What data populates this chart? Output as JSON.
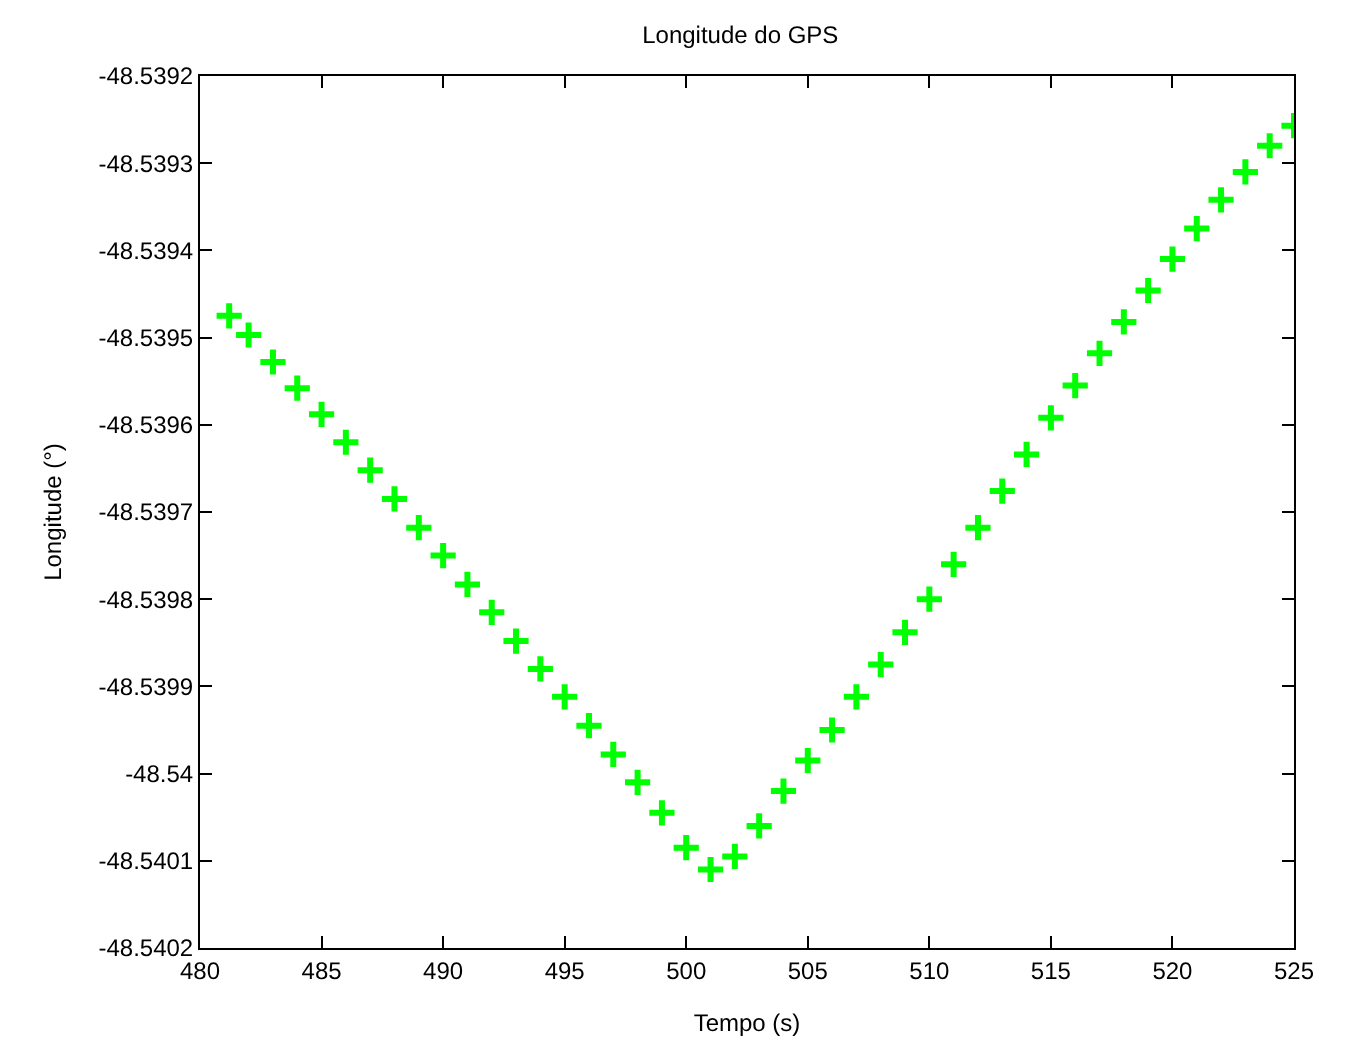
{
  "chart_data": {
    "type": "scatter",
    "title": "Longitude do GPS",
    "xlabel": "Tempo (s)",
    "ylabel": "Longitude (°)",
    "x": [
      481.2,
      482,
      483,
      484,
      485,
      486,
      487,
      488,
      489,
      490,
      491,
      492,
      493,
      494,
      495,
      496,
      497,
      498,
      499,
      500,
      501,
      502,
      503,
      504,
      505,
      506,
      507,
      508,
      509,
      510,
      511,
      512,
      513,
      514,
      515,
      516,
      517,
      518,
      519,
      520,
      521,
      522,
      523,
      524,
      525
    ],
    "series": [
      {
        "color": "#00ff00",
        "values": [
          -48.539475,
          -48.539497,
          -48.539528,
          -48.539558,
          -48.539588,
          -48.53962,
          -48.539652,
          -48.539685,
          -48.539718,
          -48.53975,
          -48.539783,
          -48.539815,
          -48.539848,
          -48.53988,
          -48.539912,
          -48.539945,
          -48.539978,
          -48.54001,
          -48.540045,
          -48.540085,
          -48.54011,
          -48.540095,
          -48.54006,
          -48.54002,
          -48.539985,
          -48.53995,
          -48.539912,
          -48.539875,
          -48.539838,
          -48.5398,
          -48.53976,
          -48.539718,
          -48.539676,
          -48.539634,
          -48.539592,
          -48.539555,
          -48.539518,
          -48.539482,
          -48.539446,
          -48.53941,
          -48.539375,
          -48.539342,
          -48.53931,
          -48.53928,
          -48.539257
        ]
      }
    ],
    "marker": "cross",
    "xlim": [
      480,
      525
    ],
    "xticks": [
      480,
      485,
      490,
      495,
      500,
      505,
      510,
      515,
      520,
      525
    ],
    "ylim": [
      -48.5402,
      -48.5392
    ],
    "yticks": [
      -48.5402,
      -48.5401,
      -48.54,
      -48.5399,
      -48.5398,
      -48.5397,
      -48.5396,
      -48.5395,
      -48.5394,
      -48.5393,
      -48.5392
    ],
    "grid": false
  }
}
